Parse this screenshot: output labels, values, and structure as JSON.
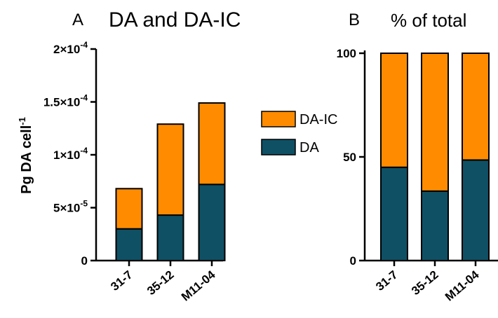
{
  "panels": [
    {
      "letter": "A",
      "title": "DA and DA-IC",
      "ylabel": "Pg DA cell",
      "ylabel_sup": "-1",
      "yticks": [
        "0",
        "5×10",
        "1×10",
        "1.5×10",
        "2×10"
      ],
      "yticks_sup": [
        "",
        "-5",
        "-4",
        "-4",
        "-4"
      ]
    },
    {
      "letter": "B",
      "title": "% of total",
      "yticks": [
        "0",
        "50",
        "100"
      ]
    }
  ],
  "legend": [
    {
      "label": "DA-IC",
      "color": "#FF8C00"
    },
    {
      "label": "DA",
      "color": "#0F5064"
    }
  ],
  "chart_data": [
    {
      "type": "bar",
      "stacked": true,
      "title": "DA and DA-IC",
      "ylabel": "Pg DA cell-1",
      "categories": [
        "31-7",
        "35-12",
        "M11-04"
      ],
      "ylim": [
        0,
        0.0002
      ],
      "series": [
        {
          "name": "DA",
          "color": "#0F5064",
          "values": [
            3e-05,
            4.3e-05,
            7.2e-05
          ]
        },
        {
          "name": "DA-IC",
          "color": "#FF8C00",
          "values": [
            3.8e-05,
            8.6e-05,
            7.7e-05
          ]
        }
      ]
    },
    {
      "type": "bar",
      "stacked": true,
      "title": "% of total",
      "categories": [
        "31-7",
        "35-12",
        "M11-04"
      ],
      "ylim": [
        0,
        100
      ],
      "series": [
        {
          "name": "DA",
          "color": "#0F5064",
          "values": [
            45,
            33.5,
            48.5
          ]
        },
        {
          "name": "DA-IC",
          "color": "#FF8C00",
          "values": [
            55,
            66.5,
            51.5
          ]
        }
      ]
    }
  ]
}
